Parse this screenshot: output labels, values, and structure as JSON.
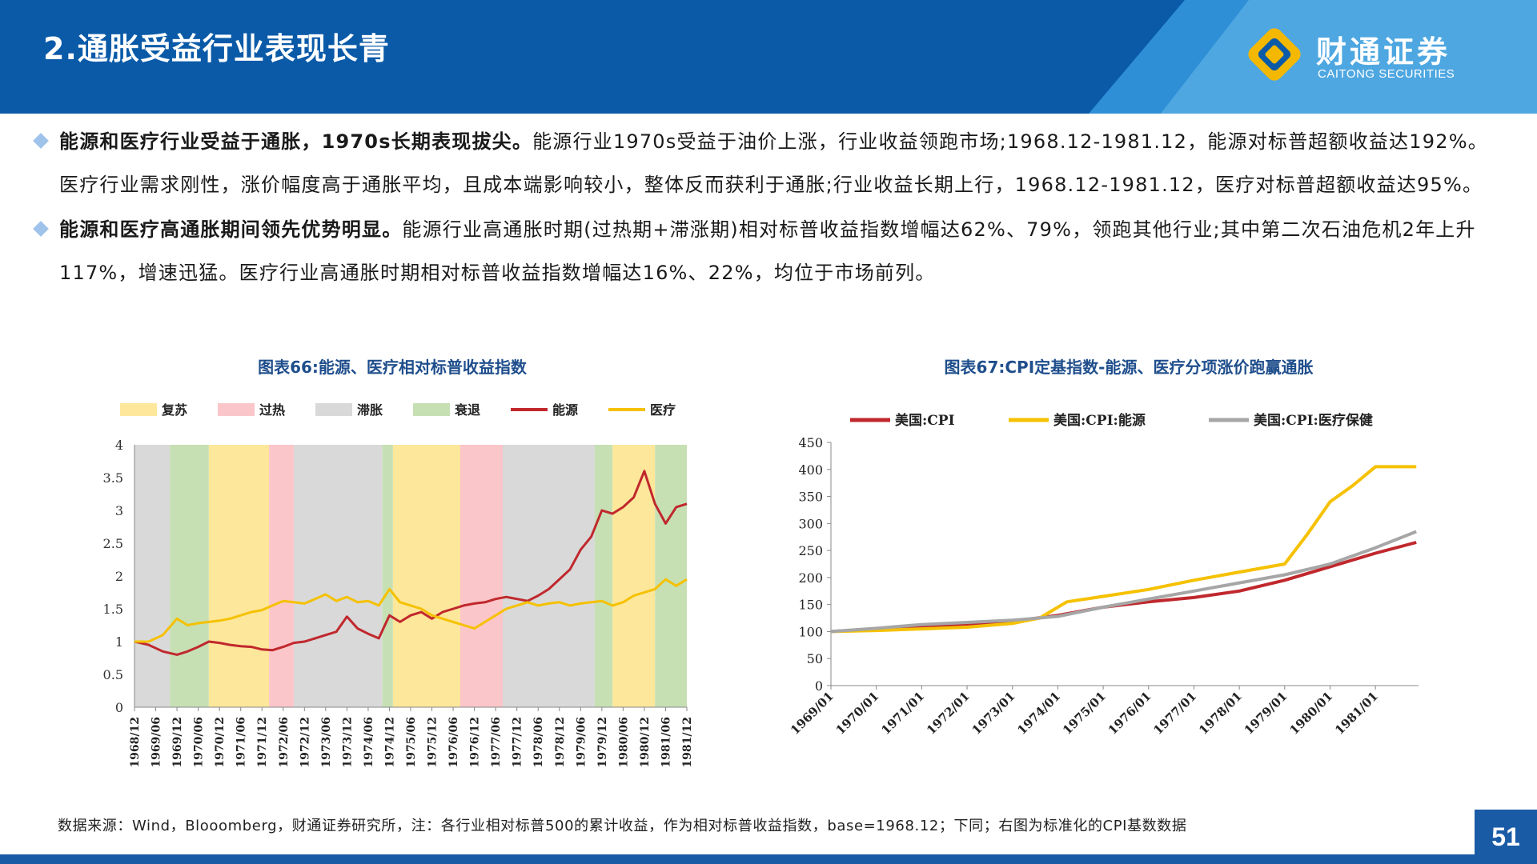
{
  "header": {
    "title": "2.通胀受益行业表现长青",
    "logo_cn": "财通证券",
    "logo_en": "CAITONG SECURITIES",
    "color_dark": "#0a5aa8",
    "color_light": "#4aa3df"
  },
  "bullets": [
    {
      "lead": "能源和医疗行业受益于通胀，1970s长期表现拔尖。",
      "text": "能源行业1970s受益于油价上涨，行业收益领跑市场;1968.12-1981.12，能源对标普超额收益达192%。医疗行业需求刚性，涨价幅度高于通胀平均，且成本端影响较小，整体反而获利于通胀;行业收益长期上行，1968.12-1981.12，医疗对标普超额收益达95%。"
    },
    {
      "lead": "能源和医疗高通胀期间领先优势明显。",
      "text": "能源行业高通胀时期(过热期+滞涨期)相对标普收益指数增幅达62%、79%，领跑其他行业;其中第二次石油危机2年上升117%，增速迅猛。医疗行业高通胀时期相对标普收益指数增幅达16%、22%，均位于市场前列。"
    }
  ],
  "charts": {
    "left_title": "图表66:能源、医疗相对标普收益指数",
    "right_title": "图表67:CPI定基指数-能源、医疗分项涨价跑赢通胀"
  },
  "chart_data": [
    {
      "type": "line",
      "title": "图表66:能源、医疗相对标普收益指数",
      "ylim": [
        0,
        4
      ],
      "yticks": [
        "0",
        "0.5",
        "1",
        "1.5",
        "2",
        "2.5",
        "3",
        "3.5",
        "4"
      ],
      "x_ticks": [
        "1968/12",
        "1969/06",
        "1969/12",
        "1970/06",
        "1970/12",
        "1971/06",
        "1971/12",
        "1972/06",
        "1972/12",
        "1973/06",
        "1973/12",
        "1974/06",
        "1974/12",
        "1975/06",
        "1975/12",
        "1976/06",
        "1976/12",
        "1977/06",
        "1977/12",
        "1978/06",
        "1978/12",
        "1979/06",
        "1979/12",
        "1980/06",
        "1980/12",
        "1981/06",
        "1981/12"
      ],
      "legend": [
        "复苏",
        "过热",
        "滞胀",
        "衰退",
        "能源",
        "医疗"
      ],
      "phase_colors": {
        "复苏": "#fde79a",
        "过热": "#fbc6c9",
        "滞胀": "#d9d9d9",
        "衰退": "#c6e0b4"
      },
      "phases": [
        {
          "phase": "滞胀",
          "start": "1968/12",
          "end": "1969/10"
        },
        {
          "phase": "衰退",
          "start": "1969/10",
          "end": "1970/09"
        },
        {
          "phase": "复苏",
          "start": "1970/09",
          "end": "1972/02"
        },
        {
          "phase": "过热",
          "start": "1972/02",
          "end": "1972/09"
        },
        {
          "phase": "滞胀",
          "start": "1972/09",
          "end": "1974/10"
        },
        {
          "phase": "衰退",
          "start": "1974/10",
          "end": "1975/01"
        },
        {
          "phase": "复苏",
          "start": "1975/01",
          "end": "1976/08"
        },
        {
          "phase": "过热",
          "start": "1976/08",
          "end": "1977/08"
        },
        {
          "phase": "滞胀",
          "start": "1977/08",
          "end": "1979/10"
        },
        {
          "phase": "衰退",
          "start": "1979/10",
          "end": "1980/03"
        },
        {
          "phase": "复苏",
          "start": "1980/03",
          "end": "1981/03"
        },
        {
          "phase": "衰退",
          "start": "1981/03",
          "end": "1981/12"
        }
      ],
      "series": [
        {
          "name": "能源",
          "color": "#c0282d",
          "x": [
            "1968/12",
            "1969/04",
            "1969/08",
            "1969/12",
            "1970/03",
            "1970/06",
            "1970/09",
            "1970/12",
            "1971/03",
            "1971/06",
            "1971/09",
            "1971/12",
            "1972/03",
            "1972/06",
            "1972/09",
            "1972/12",
            "1973/03",
            "1973/06",
            "1973/09",
            "1973/12",
            "1974/03",
            "1974/06",
            "1974/09",
            "1974/12",
            "1975/03",
            "1975/06",
            "1975/09",
            "1975/12",
            "1976/03",
            "1976/06",
            "1976/09",
            "1976/12",
            "1977/03",
            "1977/06",
            "1977/09",
            "1977/12",
            "1978/03",
            "1978/06",
            "1978/09",
            "1978/12",
            "1979/03",
            "1979/06",
            "1979/09",
            "1979/12",
            "1980/03",
            "1980/06",
            "1980/09",
            "1980/12",
            "1981/03",
            "1981/06",
            "1981/09",
            "1981/12"
          ],
          "values": [
            1.0,
            0.95,
            0.85,
            0.8,
            0.85,
            0.92,
            1.0,
            0.98,
            0.95,
            0.93,
            0.92,
            0.88,
            0.87,
            0.92,
            0.98,
            1.0,
            1.05,
            1.1,
            1.15,
            1.38,
            1.2,
            1.12,
            1.05,
            1.4,
            1.3,
            1.4,
            1.45,
            1.35,
            1.45,
            1.5,
            1.55,
            1.58,
            1.6,
            1.65,
            1.68,
            1.65,
            1.62,
            1.7,
            1.8,
            1.95,
            2.1,
            2.4,
            2.6,
            3.0,
            2.95,
            3.05,
            3.2,
            3.6,
            3.1,
            2.8,
            3.05,
            3.1
          ]
        },
        {
          "name": "医疗",
          "color": "#f5c100",
          "x": [
            "1968/12",
            "1969/04",
            "1969/08",
            "1969/12",
            "1970/03",
            "1970/06",
            "1970/09",
            "1970/12",
            "1971/03",
            "1971/06",
            "1971/09",
            "1971/12",
            "1972/03",
            "1972/06",
            "1972/09",
            "1972/12",
            "1973/03",
            "1973/06",
            "1973/09",
            "1973/12",
            "1974/03",
            "1974/06",
            "1974/09",
            "1974/12",
            "1975/03",
            "1975/06",
            "1975/09",
            "1975/12",
            "1976/03",
            "1976/06",
            "1976/09",
            "1976/12",
            "1977/03",
            "1977/06",
            "1977/09",
            "1977/12",
            "1978/03",
            "1978/06",
            "1978/09",
            "1978/12",
            "1979/03",
            "1979/06",
            "1979/09",
            "1979/12",
            "1980/03",
            "1980/06",
            "1980/09",
            "1980/12",
            "1981/03",
            "1981/06",
            "1981/09",
            "1981/12"
          ],
          "values": [
            1.0,
            1.0,
            1.1,
            1.35,
            1.25,
            1.28,
            1.3,
            1.32,
            1.35,
            1.4,
            1.45,
            1.48,
            1.55,
            1.62,
            1.6,
            1.58,
            1.65,
            1.72,
            1.62,
            1.68,
            1.6,
            1.62,
            1.55,
            1.8,
            1.6,
            1.55,
            1.5,
            1.4,
            1.35,
            1.3,
            1.25,
            1.2,
            1.3,
            1.4,
            1.5,
            1.55,
            1.6,
            1.55,
            1.58,
            1.6,
            1.55,
            1.58,
            1.6,
            1.62,
            1.55,
            1.6,
            1.7,
            1.75,
            1.8,
            1.95,
            1.85,
            1.95
          ]
        }
      ]
    },
    {
      "type": "line",
      "title": "图表67:CPI定基指数-能源、医疗分项涨价跑赢通胀",
      "ylim": [
        0,
        450
      ],
      "yticks": [
        "0",
        "50",
        "100",
        "150",
        "200",
        "250",
        "300",
        "350",
        "400",
        "450"
      ],
      "x_ticks": [
        "1969/01",
        "1970/01",
        "1971/01",
        "1972/01",
        "1973/01",
        "1974/01",
        "1975/01",
        "1976/01",
        "1977/01",
        "1978/01",
        "1979/01",
        "1980/01",
        "1981/01"
      ],
      "legend": [
        "美国:CPI",
        "美国:CPI:能源",
        "美国:CPI:医疗保健"
      ],
      "series": [
        {
          "name": "美国:CPI",
          "color": "#c0282d",
          "x": [
            1969.0,
            1970.0,
            1971.0,
            1972.0,
            1973.0,
            1974.0,
            1975.0,
            1976.0,
            1977.0,
            1978.0,
            1979.0,
            1980.0,
            1981.0,
            1981.9
          ],
          "values": [
            100,
            105,
            110,
            114,
            119,
            130,
            145,
            155,
            163,
            175,
            195,
            220,
            245,
            265
          ]
        },
        {
          "name": "美国:CPI:能源",
          "color": "#f5c100",
          "x": [
            1969.0,
            1970.0,
            1971.0,
            1972.0,
            1973.0,
            1973.6,
            1974.2,
            1975.0,
            1976.0,
            1977.0,
            1978.0,
            1979.0,
            1979.5,
            1980.0,
            1980.5,
            1981.0,
            1981.9
          ],
          "values": [
            100,
            102,
            105,
            108,
            115,
            125,
            155,
            165,
            178,
            195,
            210,
            225,
            280,
            340,
            370,
            405,
            405
          ]
        },
        {
          "name": "美国:CPI:医疗保健",
          "color": "#a6a6a6",
          "x": [
            1969.0,
            1970.0,
            1971.0,
            1972.0,
            1973.0,
            1974.0,
            1975.0,
            1976.0,
            1977.0,
            1978.0,
            1979.0,
            1980.0,
            1981.0,
            1981.9
          ],
          "values": [
            100,
            106,
            113,
            117,
            121,
            128,
            145,
            160,
            175,
            190,
            205,
            225,
            255,
            285
          ]
        }
      ]
    }
  ],
  "footer": {
    "source": "数据来源：Wind，Blooomberg，财通证券研究所，注：各行业相对标普500的累计收益，作为相对标普收益指数，base=1968.12；下同；右图为标准化的CPI基数数据",
    "page_number": "51"
  }
}
